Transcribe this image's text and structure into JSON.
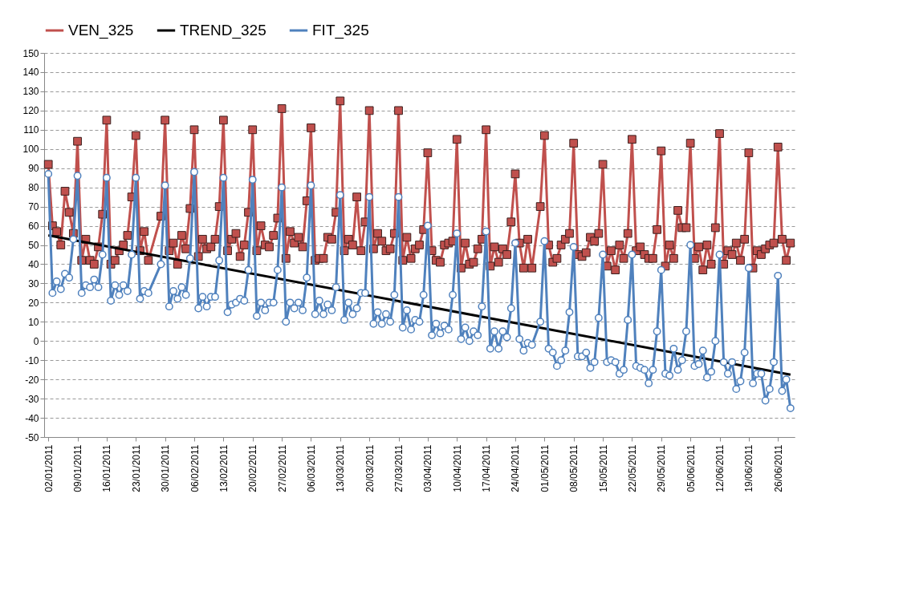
{
  "chart_data": {
    "type": "line",
    "x": [
      "2011-01-02",
      "2011-01-03",
      "2011-01-04",
      "2011-01-05",
      "2011-01-06",
      "2011-01-07",
      "2011-01-08",
      "2011-01-09",
      "2011-01-10",
      "2011-01-11",
      "2011-01-12",
      "2011-01-13",
      "2011-01-14",
      "2011-01-15",
      "2011-01-16",
      "2011-01-17",
      "2011-01-18",
      "2011-01-19",
      "2011-01-20",
      "2011-01-21",
      "2011-01-22",
      "2011-01-23",
      "2011-01-24",
      "2011-01-25",
      "2011-01-26",
      "2011-01-29",
      "2011-01-30",
      "2011-01-31",
      "2011-02-01",
      "2011-02-02",
      "2011-02-03",
      "2011-02-04",
      "2011-02-05",
      "2011-02-06",
      "2011-02-07",
      "2011-02-08",
      "2011-02-09",
      "2011-02-10",
      "2011-02-11",
      "2011-02-12",
      "2011-02-13",
      "2011-02-14",
      "2011-02-15",
      "2011-02-16",
      "2011-02-17",
      "2011-02-18",
      "2011-02-19",
      "2011-02-20",
      "2011-02-21",
      "2011-02-22",
      "2011-02-23",
      "2011-02-24",
      "2011-02-25",
      "2011-02-26",
      "2011-02-27",
      "2011-02-28",
      "2011-03-01",
      "2011-03-02",
      "2011-03-03",
      "2011-03-04",
      "2011-03-05",
      "2011-03-06",
      "2011-03-07",
      "2011-03-08",
      "2011-03-09",
      "2011-03-10",
      "2011-03-11",
      "2011-03-12",
      "2011-03-13",
      "2011-03-14",
      "2011-03-15",
      "2011-03-16",
      "2011-03-17",
      "2011-03-18",
      "2011-03-19",
      "2011-03-20",
      "2011-03-21",
      "2011-03-22",
      "2011-03-23",
      "2011-03-24",
      "2011-03-25",
      "2011-03-26",
      "2011-03-27",
      "2011-03-28",
      "2011-03-29",
      "2011-03-30",
      "2011-03-31",
      "2011-04-01",
      "2011-04-02",
      "2011-04-03",
      "2011-04-04",
      "2011-04-05",
      "2011-04-06",
      "2011-04-07",
      "2011-04-08",
      "2011-04-09",
      "2011-04-10",
      "2011-04-11",
      "2011-04-12",
      "2011-04-13",
      "2011-04-14",
      "2011-04-15",
      "2011-04-16",
      "2011-04-17",
      "2011-04-18",
      "2011-04-19",
      "2011-04-20",
      "2011-04-21",
      "2011-04-22",
      "2011-04-23",
      "2011-04-24",
      "2011-04-25",
      "2011-04-26",
      "2011-04-27",
      "2011-04-28",
      "2011-04-30",
      "2011-05-01",
      "2011-05-02",
      "2011-05-03",
      "2011-05-04",
      "2011-05-05",
      "2011-05-06",
      "2011-05-07",
      "2011-05-08",
      "2011-05-09",
      "2011-05-10",
      "2011-05-11",
      "2011-05-12",
      "2011-05-13",
      "2011-05-14",
      "2011-05-15",
      "2011-05-16",
      "2011-05-17",
      "2011-05-18",
      "2011-05-19",
      "2011-05-20",
      "2011-05-21",
      "2011-05-22",
      "2011-05-23",
      "2011-05-24",
      "2011-05-25",
      "2011-05-26",
      "2011-05-27",
      "2011-05-28",
      "2011-05-29",
      "2011-05-30",
      "2011-05-31",
      "2011-06-01",
      "2011-06-02",
      "2011-06-03",
      "2011-06-04",
      "2011-06-05",
      "2011-06-06",
      "2011-06-07",
      "2011-06-08",
      "2011-06-09",
      "2011-06-10",
      "2011-06-11",
      "2011-06-12",
      "2011-06-13",
      "2011-06-14",
      "2011-06-15",
      "2011-06-16",
      "2011-06-17",
      "2011-06-18",
      "2011-06-19",
      "2011-06-20",
      "2011-06-21",
      "2011-06-22",
      "2011-06-23",
      "2011-06-24",
      "2011-06-25",
      "2011-06-26",
      "2011-06-27",
      "2011-06-28",
      "2011-06-29"
    ],
    "series": [
      {
        "name": "VEN_325",
        "color": "#c0504d",
        "marker": "square",
        "values": [
          92,
          60,
          57,
          50,
          78,
          67,
          56,
          104,
          42,
          53,
          42,
          40,
          49,
          66,
          115,
          40,
          42,
          47,
          50,
          55,
          75,
          107,
          47,
          57,
          42,
          65,
          115,
          47,
          51,
          40,
          55,
          48,
          69,
          110,
          44,
          53,
          48,
          49,
          53,
          70,
          115,
          47,
          53,
          56,
          44,
          50,
          67,
          110,
          47,
          60,
          50,
          49,
          55,
          64,
          121,
          43,
          57,
          51,
          54,
          49,
          73,
          111,
          42,
          43,
          43,
          54,
          53,
          67,
          125,
          47,
          53,
          50,
          75,
          47,
          62,
          120,
          48,
          56,
          52,
          47,
          48,
          56,
          120,
          42,
          54,
          43,
          48,
          50,
          58,
          98,
          47,
          42,
          41,
          50,
          51,
          52,
          105,
          38,
          51,
          40,
          41,
          48,
          53,
          110,
          39,
          49,
          41,
          48,
          45,
          62,
          87,
          51,
          38,
          53,
          38,
          70,
          107,
          50,
          41,
          43,
          50,
          53,
          56,
          103,
          45,
          44,
          46,
          54,
          52,
          56,
          92,
          39,
          47,
          37,
          50,
          43,
          56,
          105,
          47,
          49,
          45,
          43,
          43,
          58,
          99,
          39,
          50,
          43,
          68,
          59,
          59,
          103,
          43,
          49,
          37,
          50,
          40,
          59,
          108,
          40,
          47,
          45,
          51,
          42,
          53,
          98,
          38,
          47,
          45,
          48,
          50,
          51,
          101,
          53,
          42,
          51
        ]
      },
      {
        "name": "TREND_325",
        "color": "#000000",
        "marker": "none",
        "x": [
          "2011-01-02",
          "2011-06-29"
        ],
        "values": [
          55,
          -17.5
        ]
      },
      {
        "name": "FIT_325",
        "color": "#4f81bd",
        "marker": "circle",
        "values": [
          87,
          25,
          31,
          27,
          35,
          33,
          53,
          86,
          25,
          29,
          28,
          32,
          28,
          45,
          85,
          21,
          29,
          24,
          29,
          26,
          45,
          85,
          22,
          26,
          25,
          40,
          81,
          18,
          26,
          22,
          28,
          24,
          43,
          88,
          17,
          23,
          18,
          23,
          23,
          42,
          85,
          15,
          19,
          20,
          22,
          21,
          37,
          84,
          13,
          20,
          16,
          20,
          20,
          37,
          80,
          10,
          20,
          17,
          20,
          16,
          33,
          81,
          14,
          21,
          14,
          19,
          16,
          28,
          76,
          11,
          20,
          14,
          17,
          25,
          25,
          75,
          9,
          15,
          9,
          14,
          10,
          24,
          75,
          7,
          16,
          6,
          11,
          10,
          24,
          60,
          3,
          9,
          4,
          8,
          6,
          24,
          56,
          1,
          7,
          0,
          5,
          3,
          18,
          57,
          -4,
          5,
          -4,
          5,
          2,
          17,
          51,
          1,
          -5,
          -1,
          -2,
          10,
          52,
          -4,
          -6,
          -13,
          -10,
          -5,
          15,
          49,
          -8,
          -8,
          -6,
          -14,
          -11,
          12,
          45,
          -11,
          -10,
          -11,
          -17,
          -15,
          11,
          45,
          -13,
          -14,
          -15,
          -22,
          -15,
          5,
          37,
          -17,
          -18,
          -4,
          -15,
          -10,
          5,
          50,
          -13,
          -12,
          -5,
          -19,
          -16,
          0,
          45,
          -11,
          -17,
          -11,
          -25,
          -21,
          -6,
          38,
          -22,
          -17,
          -17,
          -31,
          -25,
          -11,
          34,
          -26,
          -20,
          -35
        ]
      }
    ],
    "xlim": [
      "2011-01-01",
      "2011-06-30"
    ],
    "xticks": [
      {
        "value": "2011-01-02",
        "label": "02/01/2011"
      },
      {
        "value": "2011-01-09",
        "label": "09/01/2011"
      },
      {
        "value": "2011-01-16",
        "label": "16/01/2011"
      },
      {
        "value": "2011-01-23",
        "label": "23/01/2011"
      },
      {
        "value": "2011-01-30",
        "label": "30/01/2011"
      },
      {
        "value": "2011-02-06",
        "label": "06/02/2011"
      },
      {
        "value": "2011-02-13",
        "label": "13/02/2011"
      },
      {
        "value": "2011-02-20",
        "label": "20/02/2011"
      },
      {
        "value": "2011-02-27",
        "label": "27/02/2011"
      },
      {
        "value": "2011-03-06",
        "label": "06/03/2011"
      },
      {
        "value": "2011-03-13",
        "label": "13/03/2011"
      },
      {
        "value": "2011-03-20",
        "label": "20/03/2011"
      },
      {
        "value": "2011-03-27",
        "label": "27/03/2011"
      },
      {
        "value": "2011-04-03",
        "label": "03/04/2011"
      },
      {
        "value": "2011-04-10",
        "label": "10/04/2011"
      },
      {
        "value": "2011-04-17",
        "label": "17/04/2011"
      },
      {
        "value": "2011-04-24",
        "label": "24/04/2011"
      },
      {
        "value": "2011-05-01",
        "label": "01/05/2011"
      },
      {
        "value": "2011-05-08",
        "label": "08/05/2011"
      },
      {
        "value": "2011-05-15",
        "label": "15/05/2011"
      },
      {
        "value": "2011-05-22",
        "label": "22/05/2011"
      },
      {
        "value": "2011-05-29",
        "label": "29/05/2011"
      },
      {
        "value": "2011-06-05",
        "label": "05/06/2011"
      },
      {
        "value": "2011-06-12",
        "label": "12/06/2011"
      },
      {
        "value": "2011-06-19",
        "label": "19/06/2011"
      },
      {
        "value": "2011-06-26",
        "label": "26/06/2011"
      }
    ],
    "ylim": [
      -50,
      150
    ],
    "yticks": [
      -50,
      -40,
      -30,
      -20,
      -10,
      0,
      10,
      20,
      30,
      40,
      50,
      60,
      70,
      80,
      90,
      100,
      110,
      120,
      130,
      140,
      150
    ],
    "grid": "y",
    "legend": "top",
    "line_style": "solid"
  }
}
